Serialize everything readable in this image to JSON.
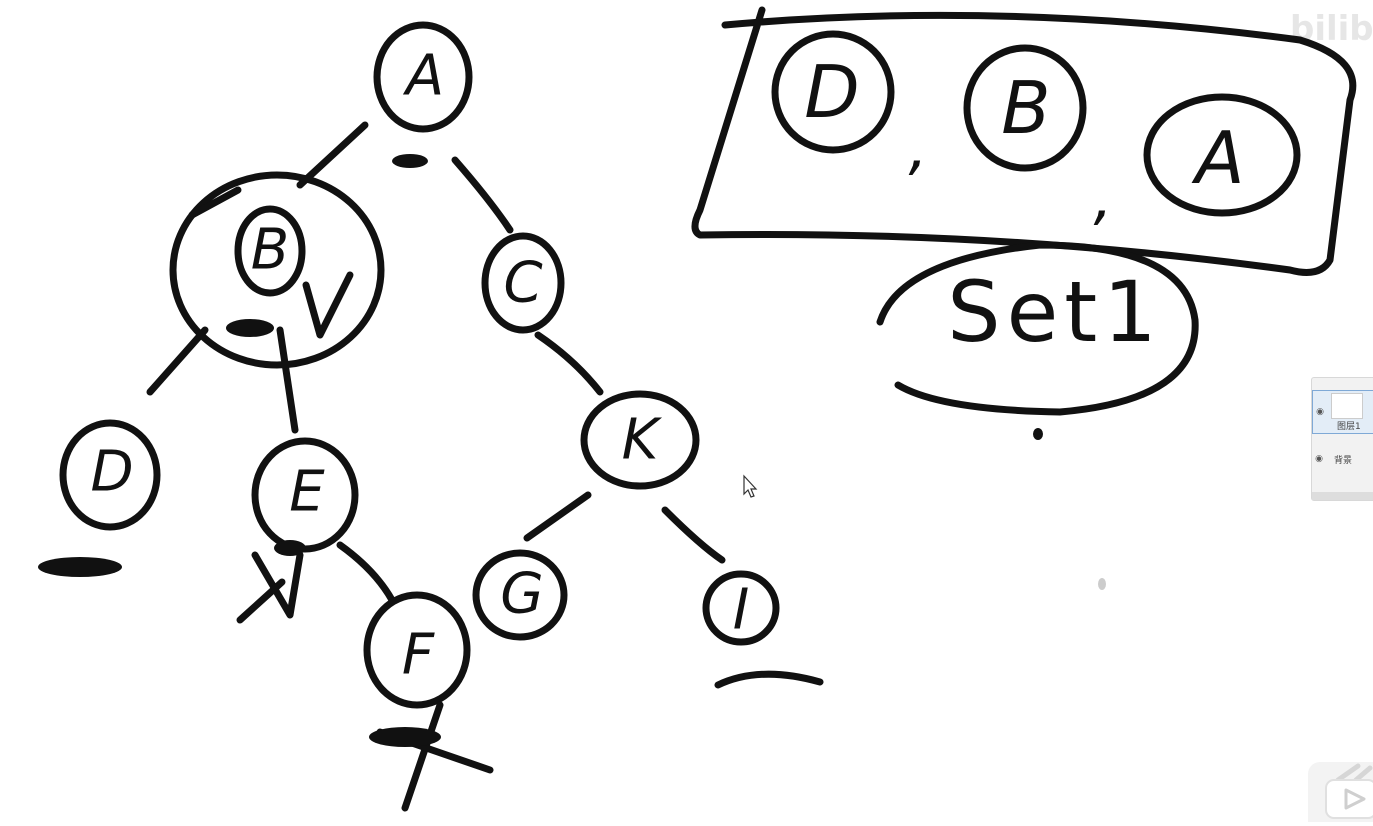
{
  "tree": {
    "nodes": [
      {
        "id": "A",
        "label": "A"
      },
      {
        "id": "B",
        "label": "B"
      },
      {
        "id": "C",
        "label": "C"
      },
      {
        "id": "D",
        "label": "D"
      },
      {
        "id": "E",
        "label": "E"
      },
      {
        "id": "F",
        "label": "F"
      },
      {
        "id": "G",
        "label": "G"
      },
      {
        "id": "K",
        "label": "K"
      },
      {
        "id": "I",
        "label": "I"
      }
    ],
    "edges": [
      [
        "A",
        "B"
      ],
      [
        "A",
        "C"
      ],
      [
        "B",
        "D"
      ],
      [
        "B",
        "E"
      ],
      [
        "E",
        "F"
      ],
      [
        "C",
        "K"
      ],
      [
        "K",
        "G"
      ],
      [
        "K",
        "I"
      ]
    ]
  },
  "stack_box": {
    "items": [
      "D",
      "B",
      "A"
    ],
    "separator": ","
  },
  "note": {
    "text": "Set1"
  },
  "watermark": {
    "text": "bilib"
  },
  "layers_panel": {
    "layers": [
      {
        "name": "图层1",
        "selected": true
      },
      {
        "name": "背景",
        "selected": false
      }
    ]
  },
  "colors": {
    "ink": "#111111",
    "background": "#ffffff",
    "panel": "#f2f2f2"
  }
}
